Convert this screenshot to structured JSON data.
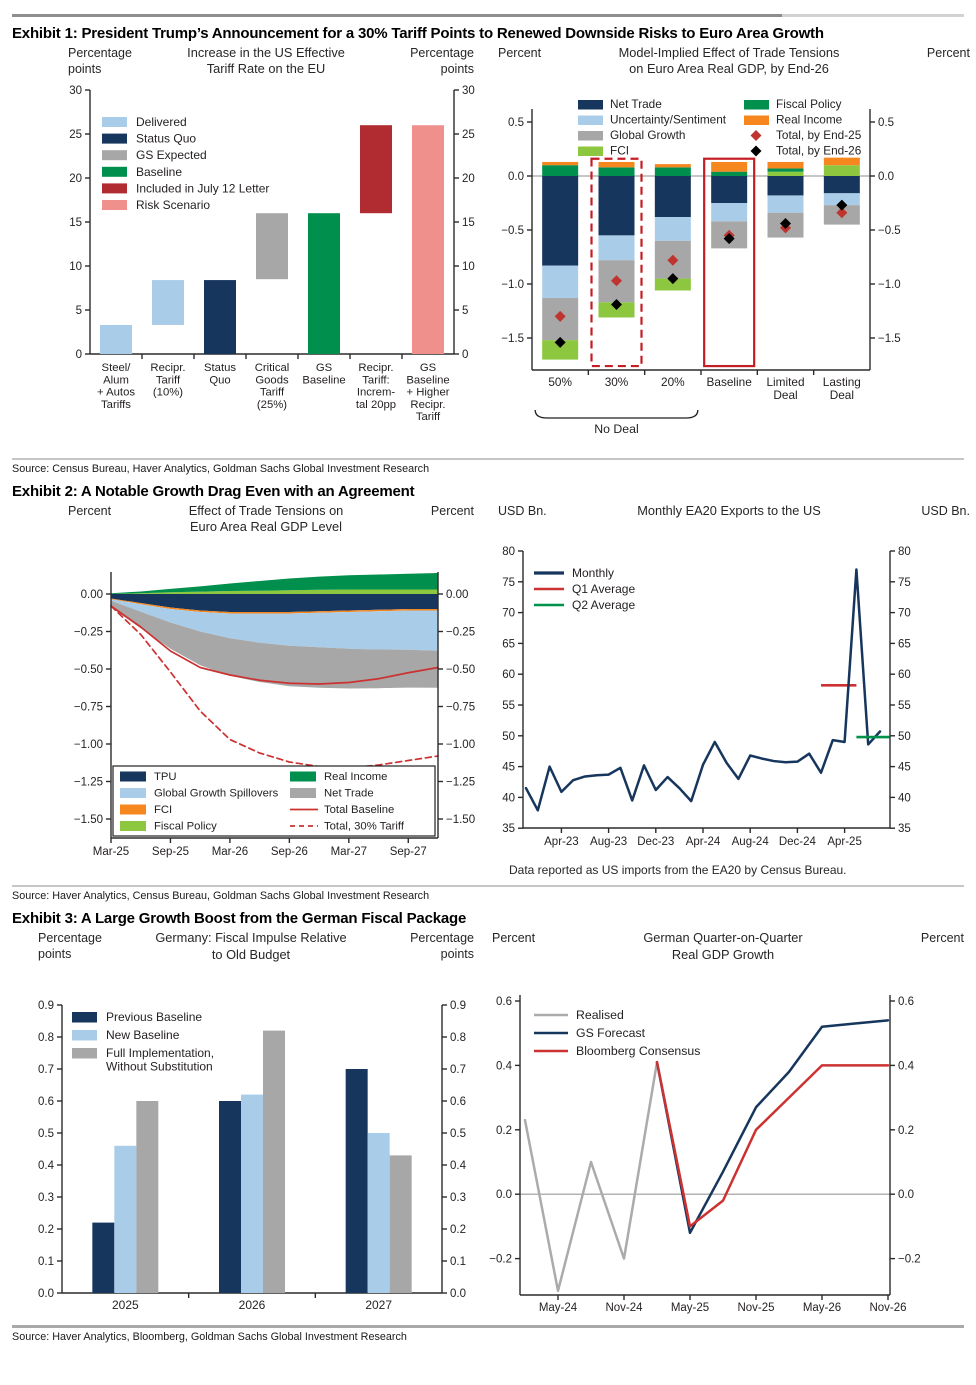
{
  "exhibits": [
    {
      "title": "Exhibit 1: President Trump’s Announcement for a 30% Tariff Points to Renewed Downside Risks to Euro Area Growth",
      "source": "Source: Census Bureau, Haver Analytics, Goldman Sachs Global Investment Research"
    },
    {
      "title": "Exhibit 2: A Notable Growth Drag Even with an Agreement",
      "source": "Source: Haver Analytics, Census Bureau, Goldman Sachs Global Investment Research"
    },
    {
      "title": "Exhibit 3: A Large Growth Boost from the German Fiscal Package",
      "source": "Source: Haver Analytics, Bloomberg, Goldman Sachs Global Investment Research"
    }
  ],
  "colors": {
    "navy": "#17365D",
    "lightblue": "#A9CDE9",
    "gray": "#A7A7A7",
    "green": "#008F4C",
    "lime": "#8DC63F",
    "orange": "#F6871F",
    "darkred": "#B02C30",
    "salmon": "#F0908D",
    "linered": "#CC3232",
    "diamondred": "#C0342F",
    "green2": "#00914A",
    "gray2": "#ABABAB",
    "black": "#000000",
    "axis": "#2B2B2B",
    "zero": "#8C8C8C",
    "outline_red": "#C41E25"
  },
  "chart_data": [
    {
      "id": "us-effective-tariff-rate-eu",
      "type": "bar",
      "title": "Increase in the US Effective\nTariff Rate on the EU",
      "unit_left": "Percentage\npoints",
      "unit_right": "Percentage\npoints",
      "ylim": [
        0,
        30
      ],
      "yticks": [
        [
          0,
          "0"
        ],
        [
          5,
          "5"
        ],
        [
          10,
          "10"
        ],
        [
          15,
          "15"
        ],
        [
          20,
          "20"
        ],
        [
          25,
          "25"
        ],
        [
          30,
          "30"
        ]
      ],
      "legend": [
        {
          "label": "Delivered",
          "color": "lightblue"
        },
        {
          "label": "Status Quo",
          "color": "navy"
        },
        {
          "label": "GS Expected",
          "color": "gray"
        },
        {
          "label": "Baseline",
          "color": "green"
        },
        {
          "label": "Included in July 12 Letter",
          "color": "darkred"
        },
        {
          "label": "Risk Scenario",
          "color": "salmon"
        }
      ],
      "bars": [
        {
          "label": "Steel/\nAlum\n+ Autos\nTariffs",
          "from": 0,
          "to": 3.3,
          "color": "lightblue"
        },
        {
          "label": "Recipr.\nTariff\n(10%)",
          "from": 3.3,
          "to": 8.4,
          "color": "lightblue"
        },
        {
          "label": "Status\nQuo",
          "from": 0,
          "to": 8.4,
          "color": "navy"
        },
        {
          "label": "Critical\nGoods\nTariff\n(25%)",
          "from": 8.5,
          "to": 16,
          "color": "gray"
        },
        {
          "label": "GS\nBaseline",
          "from": 0,
          "to": 16,
          "color": "green"
        },
        {
          "label": "Recipr.\nTariff:\nIncrem-\ntal 20pp",
          "from": 16,
          "to": 26,
          "color": "darkred"
        },
        {
          "label": "GS\nBaseline\n+ Higher\nRecipr.\nTariff",
          "from": 0,
          "to": 26,
          "color": "salmon"
        }
      ]
    },
    {
      "id": "model-implied-gdp-effect",
      "type": "stacked-bar",
      "title": "Model-Implied Effect of Trade Tensions\non Euro Area Real GDP, by End-26",
      "unit_left": "Percent",
      "unit_right": "Percent",
      "yticks": [
        [
          0.5,
          "0.5"
        ],
        [
          0,
          "0.0"
        ],
        [
          -0.5,
          "−0.5"
        ],
        [
          -1,
          "−1.0"
        ],
        [
          -1.5,
          "−1.5"
        ]
      ],
      "legend_col1": [
        {
          "label": "Net Trade",
          "color": "navy",
          "type": "box"
        },
        {
          "label": "Uncertainty/Sentiment",
          "color": "lightblue",
          "type": "box"
        },
        {
          "label": "Global Growth",
          "color": "gray",
          "type": "box"
        },
        {
          "label": "FCI",
          "color": "lime",
          "type": "box"
        }
      ],
      "legend_col2": [
        {
          "label": "Fiscal Policy",
          "color": "green",
          "type": "box"
        },
        {
          "label": "Real Income",
          "color": "orange",
          "type": "box"
        },
        {
          "label": "Total, by End-25",
          "color": "diamondred",
          "type": "diamond"
        },
        {
          "label": "Total, by End-26",
          "color": "black",
          "type": "diamond"
        }
      ],
      "categories": [
        "50%",
        "30%",
        "20%",
        "Baseline",
        "Limited\nDeal",
        "Lasting\nDeal"
      ],
      "bars": [
        {
          "segments": [
            [
              "green",
              0.1
            ],
            [
              "orange",
              0.03
            ],
            [
              "navy",
              -0.83
            ],
            [
              "lightblue",
              -0.3
            ],
            [
              "gray",
              -0.39
            ],
            [
              "lime",
              -0.18
            ]
          ],
          "end25": -1.3,
          "end26": -1.54
        },
        {
          "segments": [
            [
              "green",
              0.08
            ],
            [
              "orange",
              0.05
            ],
            [
              "navy",
              -0.55
            ],
            [
              "lightblue",
              -0.23
            ],
            [
              "gray",
              -0.39
            ],
            [
              "lime",
              -0.14
            ]
          ],
          "end25": -0.97,
          "end26": -1.19,
          "outline": "dashed"
        },
        {
          "segments": [
            [
              "green",
              0.08
            ],
            [
              "orange",
              0.03
            ],
            [
              "navy",
              -0.38
            ],
            [
              "lightblue",
              -0.22
            ],
            [
              "gray",
              -0.35
            ],
            [
              "lime",
              -0.11
            ]
          ],
          "end25": -0.78,
          "end26": -0.95
        },
        {
          "segments": [
            [
              "green",
              0.04
            ],
            [
              "orange",
              0.09
            ],
            [
              "navy",
              -0.25
            ],
            [
              "lightblue",
              -0.17
            ],
            [
              "gray",
              -0.25
            ]
          ],
          "end25": -0.55,
          "end26": -0.58,
          "outline": "solid"
        },
        {
          "segments": [
            [
              "lime",
              0.04
            ],
            [
              "green",
              0.03
            ],
            [
              "orange",
              0.06
            ],
            [
              "navy",
              -0.18
            ],
            [
              "lightblue",
              -0.16
            ],
            [
              "gray",
              -0.23
            ]
          ],
          "end25": -0.48,
          "end26": -0.44
        },
        {
          "segments": [
            [
              "lime",
              0.1
            ],
            [
              "orange",
              0.07
            ],
            [
              "navy",
              -0.16
            ],
            [
              "lightblue",
              -0.11
            ],
            [
              "gray",
              -0.18
            ]
          ],
          "end25": -0.34,
          "end26": -0.27
        }
      ],
      "bracket": {
        "label": "No Deal",
        "from": 0,
        "to": 2
      }
    },
    {
      "id": "trade-tensions-gdp-level",
      "type": "area",
      "title": "Effect of Trade Tensions on\nEuro Area Real GDP Level",
      "unit_left": "Percent",
      "unit_right": "Percent",
      "n": 12,
      "yticks": [
        [
          0,
          "0.00"
        ],
        [
          -0.25,
          "−0.25"
        ],
        [
          -0.5,
          "−0.50"
        ],
        [
          -0.75,
          "−0.75"
        ],
        [
          -1,
          "−1.00"
        ],
        [
          -1.25,
          "−1.25"
        ],
        [
          -1.5,
          "−1.50"
        ]
      ],
      "xticks": [
        [
          0,
          "Mar-25"
        ],
        [
          2,
          "Sep-25"
        ],
        [
          4,
          "Mar-26"
        ],
        [
          6,
          "Sep-26"
        ],
        [
          8,
          "Mar-27"
        ],
        [
          10,
          "Sep-27"
        ]
      ],
      "pos_areas": [
        {
          "name": "Fiscal Policy",
          "color": "lime",
          "values": [
            0,
            0.005,
            0.012,
            0.016,
            0.02,
            0.022,
            0.025,
            0.028,
            0.03,
            0.03,
            0.03,
            0.03
          ]
        },
        {
          "name": "Real Income",
          "color": "green",
          "values": [
            0.005,
            0.012,
            0.022,
            0.035,
            0.05,
            0.065,
            0.078,
            0.088,
            0.095,
            0.1,
            0.105,
            0.11
          ]
        }
      ],
      "neg_areas": [
        {
          "name": "TPU",
          "color": "navy",
          "values": [
            -0.03,
            -0.06,
            -0.09,
            -0.11,
            -0.12,
            -0.12,
            -0.12,
            -0.115,
            -0.11,
            -0.105,
            -0.1,
            -0.1
          ]
        },
        {
          "name": "FCI",
          "color": "orange",
          "values": [
            -0.005,
            -0.008,
            -0.01,
            -0.01,
            -0.01,
            -0.01,
            -0.01,
            -0.01,
            -0.01,
            -0.01,
            -0.01,
            -0.01
          ]
        },
        {
          "name": "Global Growth Spillovers",
          "color": "lightblue",
          "values": [
            -0.01,
            -0.05,
            -0.09,
            -0.13,
            -0.165,
            -0.195,
            -0.215,
            -0.23,
            -0.245,
            -0.255,
            -0.262,
            -0.268
          ]
        },
        {
          "name": "Net Trade",
          "color": "gray",
          "values": [
            -0.045,
            -0.11,
            -0.175,
            -0.225,
            -0.25,
            -0.262,
            -0.27,
            -0.27,
            -0.265,
            -0.258,
            -0.252,
            -0.247
          ]
        }
      ],
      "lines": [
        {
          "name": "Total Baseline",
          "color": "linered",
          "dash": false,
          "values": [
            -0.08,
            -0.22,
            -0.38,
            -0.49,
            -0.54,
            -0.575,
            -0.595,
            -0.6,
            -0.59,
            -0.565,
            -0.525,
            -0.49
          ]
        },
        {
          "name": "Total, 30% Tariff",
          "color": "linered",
          "dash": true,
          "values": [
            -0.08,
            -0.27,
            -0.52,
            -0.78,
            -0.97,
            -1.06,
            -1.12,
            -1.15,
            -1.16,
            -1.14,
            -1.11,
            -1.08
          ]
        }
      ],
      "legend_col1": [
        {
          "label": "TPU",
          "color": "navy",
          "type": "box"
        },
        {
          "label": "Global Growth Spillovers",
          "color": "lightblue",
          "type": "box"
        },
        {
          "label": "FCI",
          "color": "orange",
          "type": "box"
        },
        {
          "label": "Fiscal Policy",
          "color": "lime",
          "type": "box"
        }
      ],
      "legend_col2": [
        {
          "label": "Real Income",
          "color": "green",
          "type": "box"
        },
        {
          "label": "Net Trade",
          "color": "gray",
          "type": "box"
        },
        {
          "label": "Total Baseline",
          "color": "linered",
          "type": "line"
        },
        {
          "label": "Total, 30% Tariff",
          "color": "linered",
          "type": "dashline"
        }
      ]
    },
    {
      "id": "monthly-ea20-exports",
      "type": "line",
      "title": "Monthly EA20 Exports to the US",
      "unit_left": "USD Bn.",
      "unit_right": "USD Bn.",
      "yticks": [
        [
          80,
          "80"
        ],
        [
          75,
          "75"
        ],
        [
          70,
          "70"
        ],
        [
          65,
          "65"
        ],
        [
          60,
          "60"
        ],
        [
          55,
          "55"
        ],
        [
          50,
          "50"
        ],
        [
          45,
          "45"
        ],
        [
          40,
          "40"
        ],
        [
          35,
          "35"
        ]
      ],
      "xticks": [
        [
          3,
          "Apr-23"
        ],
        [
          7,
          "Aug-23"
        ],
        [
          11,
          "Dec-23"
        ],
        [
          15,
          "Apr-24"
        ],
        [
          19,
          "Aug-24"
        ],
        [
          23,
          "Dec-24"
        ],
        [
          27,
          "Apr-25"
        ]
      ],
      "series": {
        "name": "Monthly",
        "color": "navy",
        "values": [
          41.5,
          37.9,
          45,
          40.9,
          42.8,
          43.4,
          43.6,
          43.7,
          44.8,
          39.5,
          45.2,
          41.2,
          43.3,
          41.5,
          39.4,
          45.3,
          49,
          45.6,
          43,
          46.8,
          46.3,
          45.9,
          45.7,
          45.8,
          47.1,
          44,
          49.3,
          49,
          77,
          48.6,
          50.7
        ]
      },
      "avg_segments": [
        {
          "name": "Q1 Average",
          "color": "linered",
          "value": 58.2,
          "from": 25,
          "to": 28
        },
        {
          "name": "Q2 Average",
          "color": "green2",
          "value": 49.8,
          "from": 28,
          "to": 30.8
        }
      ],
      "footnote": "Data reported as US imports from the EA20 by Census Bureau."
    },
    {
      "id": "germany-fiscal-impulse",
      "type": "grouped-bar",
      "title": "Germany: Fiscal Impulse Relative\nto Old Budget",
      "unit_left": "Percentage\npoints",
      "unit_right": "Percentage\npoints",
      "yticks": [
        [
          0,
          "0.0"
        ],
        [
          0.1,
          "0.1"
        ],
        [
          0.2,
          "0.2"
        ],
        [
          0.3,
          "0.3"
        ],
        [
          0.4,
          "0.4"
        ],
        [
          0.5,
          "0.5"
        ],
        [
          0.6,
          "0.6"
        ],
        [
          0.7,
          "0.7"
        ],
        [
          0.8,
          "0.8"
        ],
        [
          0.9,
          "0.9"
        ]
      ],
      "categories": [
        "2025",
        "2026",
        "2027"
      ],
      "series": [
        {
          "name": "Previous Baseline",
          "color": "navy",
          "values": [
            0.22,
            0.6,
            0.7
          ]
        },
        {
          "name": "New Baseline",
          "color": "lightblue",
          "values": [
            0.46,
            0.62,
            0.5
          ]
        },
        {
          "name": "Full Implementation,\nWithout Substitution",
          "color": "gray",
          "values": [
            0.6,
            0.82,
            0.43
          ]
        }
      ]
    },
    {
      "id": "german-qoq-gdp",
      "type": "multi-line",
      "title": "German Quarter-on-Quarter\nReal GDP Growth",
      "unit_left": "Percent",
      "unit_right": "Percent",
      "n": 12,
      "yticks": [
        [
          0.6,
          "0.6"
        ],
        [
          0.4,
          "0.4"
        ],
        [
          0.2,
          "0.2"
        ],
        [
          0,
          "0.0"
        ],
        [
          -0.2,
          "−0.2"
        ]
      ],
      "xticks": [
        [
          1,
          "May-24"
        ],
        [
          3,
          "Nov-24"
        ],
        [
          5,
          "May-25"
        ],
        [
          7,
          "Nov-25"
        ],
        [
          9,
          "May-26"
        ],
        [
          11,
          "Nov-26"
        ]
      ],
      "series": [
        {
          "name": "Realised",
          "color": "gray2",
          "start": 0,
          "values": [
            0.23,
            -0.3,
            0.1,
            -0.2,
            0.41
          ]
        },
        {
          "name": "GS Forecast",
          "color": "navy",
          "start": 4,
          "values": [
            0.41,
            -0.12,
            0.07,
            0.27,
            0.38,
            0.52,
            0.53,
            0.54
          ]
        },
        {
          "name": "Bloomberg Consensus",
          "color": "linered",
          "start": 4,
          "values": [
            0.41,
            -0.1,
            -0.02,
            0.2,
            0.3,
            0.4,
            0.4,
            0.4
          ]
        }
      ]
    }
  ]
}
